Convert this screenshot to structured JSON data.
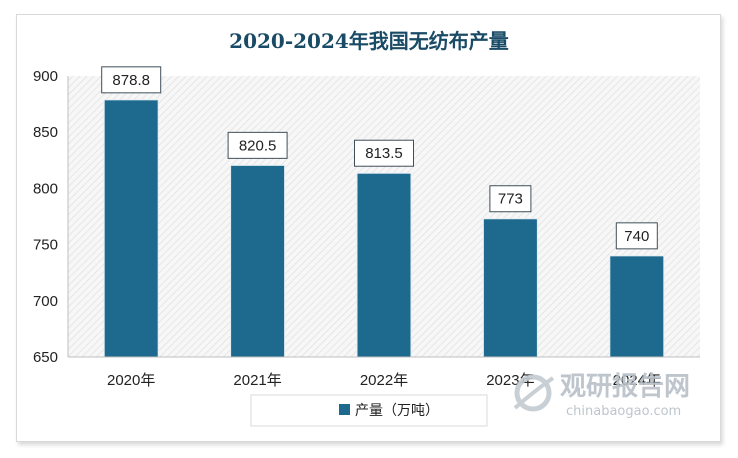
{
  "chart_data": {
    "type": "bar",
    "title": "2020-2024年我国无纺布产量",
    "categories": [
      "2020年",
      "2021年",
      "2022年",
      "2023年",
      "2024年"
    ],
    "series": [
      {
        "name": "产量（万吨）",
        "values": [
          878.8,
          820.5,
          813.5,
          773,
          740
        ],
        "labels": [
          "878.8",
          "820.5",
          "813.5",
          "773",
          "740"
        ]
      }
    ],
    "ylim": [
      650,
      900
    ],
    "yticks": [
      900,
      850,
      800,
      750,
      700,
      650
    ],
    "xlabel": "",
    "ylabel": "",
    "grid": false,
    "legend_position": "bottom",
    "bar_color": "#1d6a8e"
  },
  "watermark": {
    "brand_cn": "观研报告网",
    "brand_en": "chinabaogao.com"
  }
}
